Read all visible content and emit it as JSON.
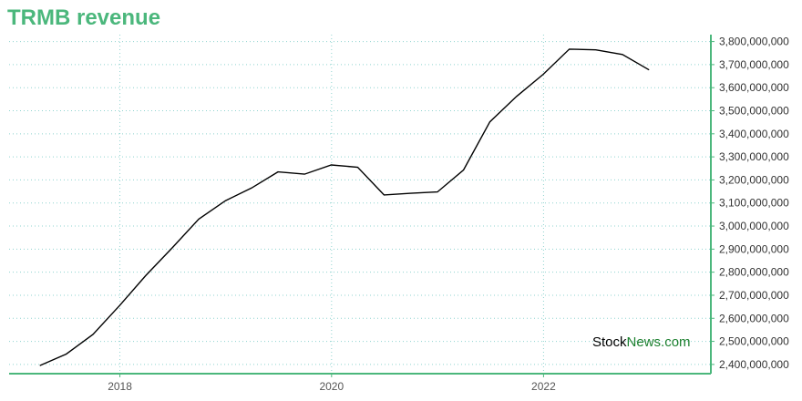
{
  "chart_data": {
    "type": "line",
    "title": "TRMB revenue",
    "xlabel": "",
    "ylabel": "",
    "ylim": [
      2360000000,
      3830000000
    ],
    "xlim": [
      "2016-12-15",
      "2023-08-01"
    ],
    "x_ticks": [
      "2018",
      "2020",
      "2022"
    ],
    "y_ticks": [
      "3,800,000,000",
      "3,700,000,000",
      "3,600,000,000",
      "3,500,000,000",
      "3,400,000,000",
      "3,300,000,000",
      "3,200,000,000",
      "3,100,000,000",
      "3,000,000,000",
      "2,900,000,000",
      "2,800,000,000",
      "2,700,000,000",
      "2,600,000,000",
      "2,500,000,000",
      "2,400,000,000"
    ],
    "grid": true,
    "series": [
      {
        "x": [
          "2017-03-31",
          "2017-06-30",
          "2017-09-30",
          "2017-12-31",
          "2018-03-31",
          "2018-06-30",
          "2018-09-30",
          "2018-12-31",
          "2019-03-31",
          "2019-06-30",
          "2019-09-30",
          "2019-12-31",
          "2020-03-31",
          "2020-06-30",
          "2020-09-30",
          "2020-12-31",
          "2021-03-31",
          "2021-06-30",
          "2021-09-30",
          "2021-12-31",
          "2022-03-31",
          "2022-06-30",
          "2022-09-30",
          "2022-12-31"
        ],
        "values": [
          2395000000,
          2445000000,
          2530000000,
          2655000000,
          2785000000,
          2905000000,
          3030000000,
          3110000000,
          3165000000,
          3235000000,
          3225000000,
          3265000000,
          3255000000,
          3135000000,
          3142000000,
          3148000000,
          3243000000,
          3452000000,
          3562000000,
          3658000000,
          3767000000,
          3764000000,
          3744000000,
          3677000000
        ]
      }
    ],
    "colors": {
      "line": "#000000",
      "axis": "#4bb77c",
      "grid": "#8fd3cf",
      "title": "#4bb77c",
      "watermark_accent": "#1b7f2e"
    }
  },
  "watermark": {
    "part1": "Stock",
    "part2": "News",
    "part3": ".com"
  }
}
